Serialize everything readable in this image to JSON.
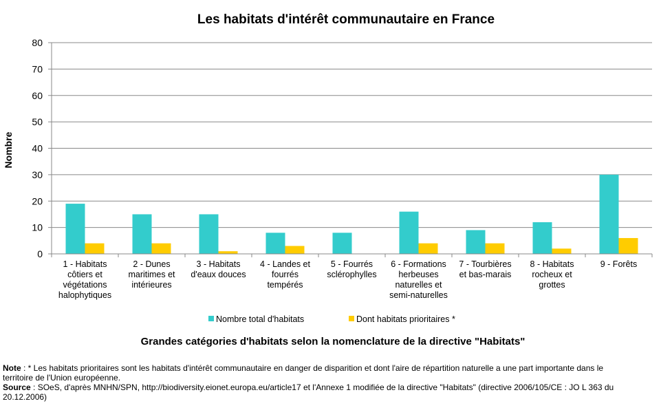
{
  "chart_data": {
    "type": "bar",
    "title": "Les habitats d'intérêt communautaire en France",
    "ylabel": "Nombre",
    "xlabel": "Grandes catégories d'habitats selon la nomenclature de la directive \"Habitats\"",
    "ylim": [
      0,
      80
    ],
    "yticks": [
      0,
      10,
      20,
      30,
      40,
      50,
      60,
      70,
      80
    ],
    "grid": true,
    "legend_position": "bottom",
    "categories": [
      [
        "1 - Habitats",
        "côtiers et",
        "végétations",
        "halophytiques"
      ],
      [
        "2 - Dunes",
        "maritimes et",
        "intérieures"
      ],
      [
        "3 - Habitats",
        "d'eaux douces"
      ],
      [
        "4 - Landes et",
        "fourrés",
        "tempérés"
      ],
      [
        "5 - Fourrés",
        "sclérophylles"
      ],
      [
        "6 - Formations",
        "herbeuses",
        "naturelles et",
        "semi-naturelles"
      ],
      [
        "7 - Tourbières",
        "et bas-marais"
      ],
      [
        "8 - Habitats",
        "rocheux et",
        "grottes"
      ],
      [
        "9 - Forêts"
      ]
    ],
    "series": [
      {
        "name": "Nombre total d'habitats",
        "color": "#33CCCC",
        "values": [
          19,
          15,
          15,
          8,
          8,
          16,
          9,
          12,
          30
        ]
      },
      {
        "name": "Dont habitats prioritaires *",
        "color": "#FFCC00",
        "values": [
          4,
          4,
          1,
          3,
          0,
          4,
          4,
          2,
          6
        ]
      }
    ]
  },
  "notes": {
    "note_label": "Note",
    "note_text": " : * Les habitats prioritaires sont les habitats d'intérêt communautaire en danger de disparition et dont l'aire de répartition naturelle a une part importante dans le territoire de l'Union européenne.",
    "source_label": "Source",
    "source_text": " : SOeS, d'après MNHN/SPN,  http://biodiversity.eionet.europa.eu/article17  et l'Annexe 1 modifiée de la directive \"Habitats\" (directive 2006/105/CE : JO L 363 du 20.12.2006)"
  }
}
